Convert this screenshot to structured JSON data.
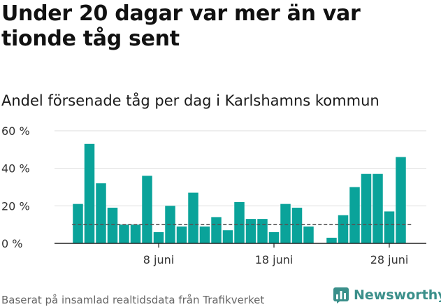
{
  "title": "Under 20 dagar var mer än var tionde tåg sent",
  "subtitle": "Andel försenade tåg per dag i Karlshamns kommun",
  "source": "Baserat på insamlad realtidsdata från Trafikverket",
  "brand": "Newsworthy",
  "colors": {
    "bar": "#0aa39a",
    "threshold": "#555555",
    "grid": "#dddddd",
    "brand": "#3a8f8a"
  },
  "chart_data": {
    "type": "bar",
    "title": "Andel försenade tåg per dag i Karlshamns kommun",
    "xlabel": "",
    "ylabel": "",
    "ylim": [
      0,
      60
    ],
    "yticks": [
      0,
      20,
      40,
      60
    ],
    "ytick_labels": [
      "0 %",
      "20 %",
      "40 %",
      "60 %"
    ],
    "xtick_labels": [
      {
        "day": 8,
        "label": "8 juni"
      },
      {
        "day": 18,
        "label": "18 juni"
      },
      {
        "day": 28,
        "label": "28 juni"
      }
    ],
    "threshold": 10,
    "days": [
      1,
      2,
      3,
      4,
      5,
      6,
      7,
      8,
      9,
      10,
      11,
      12,
      13,
      14,
      15,
      16,
      17,
      18,
      19,
      20,
      21,
      22,
      23,
      24,
      25,
      26,
      27,
      28,
      29,
      30
    ],
    "values": [
      21,
      53,
      32,
      19,
      10,
      10,
      36,
      6,
      20,
      9,
      27,
      9,
      14,
      7,
      22,
      13,
      13,
      6,
      21,
      19,
      9,
      null,
      3,
      15,
      30,
      37,
      37,
      17,
      46,
      null
    ],
    "grid": true,
    "legend": "none"
  }
}
